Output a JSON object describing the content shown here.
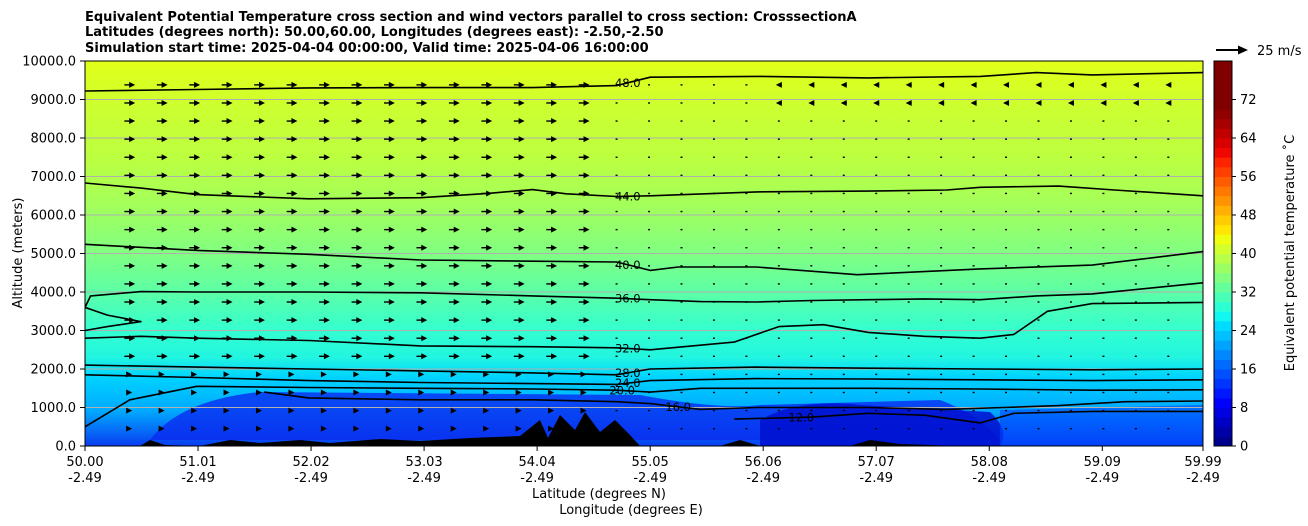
{
  "chart_data": {
    "type": "contour",
    "title_lines": [
      "Equivalent Potential Temperature cross section and wind vectors parallel to cross section: CrosssectionA",
      "Latitudes (degrees north): 50.00,60.00, Longitudes (degrees east): -2.50,-2.50",
      "Simulation start time: 2025-04-04 00:00:00, Valid time: 2025-04-06 16:00:00"
    ],
    "xlabel_lat": "Latitude (degrees N)",
    "xlabel_lon": "Longitude (degrees E)",
    "ylabel": "Altitude (meters)",
    "colorbar_label": "Equivalent potential temperature ˚C",
    "quiver_key_label": "25 m/s",
    "ylim": [
      0,
      10000
    ],
    "xlim": [
      50.0,
      59.99
    ],
    "y_ticks": [
      {
        "value": 0,
        "label": "0.0"
      },
      {
        "value": 1000,
        "label": "1000.0"
      },
      {
        "value": 2000,
        "label": "2000.0"
      },
      {
        "value": 3000,
        "label": "3000.0"
      },
      {
        "value": 4000,
        "label": "4000.0"
      },
      {
        "value": 5000,
        "label": "5000.0"
      },
      {
        "value": 6000,
        "label": "6000.0"
      },
      {
        "value": 7000,
        "label": "7000.0"
      },
      {
        "value": 8000,
        "label": "8000.0"
      },
      {
        "value": 9000,
        "label": "9000.0"
      },
      {
        "value": 10000,
        "label": "10000.0"
      }
    ],
    "x_ticks": [
      {
        "lat": 50.0,
        "lat_label": "50.00",
        "lon_label": "-2.49"
      },
      {
        "lat": 51.01,
        "lat_label": "51.01",
        "lon_label": "-2.49"
      },
      {
        "lat": 52.02,
        "lat_label": "52.02",
        "lon_label": "-2.49"
      },
      {
        "lat": 53.03,
        "lat_label": "53.03",
        "lon_label": "-2.49"
      },
      {
        "lat": 54.04,
        "lat_label": "54.04",
        "lon_label": "-2.49"
      },
      {
        "lat": 55.05,
        "lat_label": "55.05",
        "lon_label": "-2.49"
      },
      {
        "lat": 56.06,
        "lat_label": "56.06",
        "lon_label": "-2.49"
      },
      {
        "lat": 57.07,
        "lat_label": "57.07",
        "lon_label": "-2.49"
      },
      {
        "lat": 58.08,
        "lat_label": "58.08",
        "lon_label": "-2.49"
      },
      {
        "lat": 59.09,
        "lat_label": "59.09",
        "lon_label": "-2.49"
      },
      {
        "lat": 59.99,
        "lat_label": "59.99",
        "lon_label": "-2.49"
      }
    ],
    "colorbar_ticks": [
      0,
      8,
      16,
      24,
      32,
      40,
      48,
      56,
      64,
      72
    ],
    "colorbar_range": [
      0,
      80
    ],
    "colorbar_levels": [
      {
        "value": 0,
        "color": "#00008f"
      },
      {
        "value": 2,
        "color": "#0000a8"
      },
      {
        "value": 4,
        "color": "#0000c4"
      },
      {
        "value": 6,
        "color": "#0000e0"
      },
      {
        "value": 8,
        "color": "#0000ff"
      },
      {
        "value": 10,
        "color": "#0018ff"
      },
      {
        "value": 12,
        "color": "#0034ff"
      },
      {
        "value": 14,
        "color": "#0050ff"
      },
      {
        "value": 16,
        "color": "#006cff"
      },
      {
        "value": 18,
        "color": "#0088ff"
      },
      {
        "value": 20,
        "color": "#00a4ff"
      },
      {
        "value": 22,
        "color": "#00c0ff"
      },
      {
        "value": 24,
        "color": "#00dcff"
      },
      {
        "value": 26,
        "color": "#10f8ef"
      },
      {
        "value": 28,
        "color": "#2cffd3"
      },
      {
        "value": 30,
        "color": "#48ffb7"
      },
      {
        "value": 32,
        "color": "#64ff9b"
      },
      {
        "value": 34,
        "color": "#80ff80"
      },
      {
        "value": 36,
        "color": "#9bff64"
      },
      {
        "value": 38,
        "color": "#b7ff48"
      },
      {
        "value": 40,
        "color": "#d3ff2c"
      },
      {
        "value": 42,
        "color": "#efff10"
      },
      {
        "value": 44,
        "color": "#ffe500"
      },
      {
        "value": 46,
        "color": "#ffcc00"
      },
      {
        "value": 48,
        "color": "#ffb000"
      },
      {
        "value": 50,
        "color": "#ff9400"
      },
      {
        "value": 52,
        "color": "#ff7800"
      },
      {
        "value": 54,
        "color": "#ff5c00"
      },
      {
        "value": 56,
        "color": "#ff4000"
      },
      {
        "value": 58,
        "color": "#ff2400"
      },
      {
        "value": 60,
        "color": "#f00800"
      },
      {
        "value": 62,
        "color": "#d80000"
      },
      {
        "value": 64,
        "color": "#c00000"
      },
      {
        "value": 66,
        "color": "#a80000"
      },
      {
        "value": 68,
        "color": "#900000"
      },
      {
        "value": 70,
        "color": "#800000"
      }
    ],
    "contour_lines": [
      {
        "label": "48.0",
        "value": 48,
        "label_at": 54.85,
        "points": [
          [
            50.0,
            9220
          ],
          [
            51.0,
            9260
          ],
          [
            52.0,
            9300
          ],
          [
            53.0,
            9310
          ],
          [
            54.0,
            9310
          ],
          [
            54.75,
            9360
          ],
          [
            55.05,
            9580
          ],
          [
            56.0,
            9600
          ],
          [
            57.0,
            9560
          ],
          [
            58.0,
            9600
          ],
          [
            58.5,
            9700
          ],
          [
            59.0,
            9640
          ],
          [
            59.99,
            9700
          ]
        ]
      },
      {
        "label": "44.0",
        "value": 44,
        "label_at": 54.85,
        "points": [
          [
            50.0,
            6830
          ],
          [
            50.5,
            6700
          ],
          [
            51.0,
            6530
          ],
          [
            52.0,
            6420
          ],
          [
            53.0,
            6450
          ],
          [
            53.6,
            6560
          ],
          [
            54.0,
            6660
          ],
          [
            54.3,
            6550
          ],
          [
            54.75,
            6480
          ],
          [
            55.05,
            6500
          ],
          [
            56.0,
            6600
          ],
          [
            57.0,
            6620
          ],
          [
            57.7,
            6650
          ],
          [
            58.0,
            6720
          ],
          [
            58.7,
            6750
          ],
          [
            59.2,
            6650
          ],
          [
            59.99,
            6500
          ]
        ]
      },
      {
        "label": "40.0",
        "value": 40,
        "label_at": 54.85,
        "points": [
          [
            50.0,
            5240
          ],
          [
            51.0,
            5080
          ],
          [
            52.0,
            4980
          ],
          [
            53.0,
            4830
          ],
          [
            54.0,
            4800
          ],
          [
            54.75,
            4780
          ],
          [
            55.05,
            4560
          ],
          [
            55.3,
            4650
          ],
          [
            56.0,
            4650
          ],
          [
            56.9,
            4450
          ],
          [
            58.0,
            4600
          ],
          [
            59.0,
            4700
          ],
          [
            59.99,
            5050
          ]
        ]
      },
      {
        "label": "36.0",
        "value": 36,
        "label_at": 54.85,
        "points": [
          [
            50.0,
            3000
          ],
          [
            50.2,
            3100
          ],
          [
            50.5,
            3230
          ],
          [
            50.2,
            3400
          ],
          [
            50.0,
            3600
          ],
          [
            50.05,
            3900
          ],
          [
            50.5,
            4010
          ],
          [
            51.0,
            4000
          ],
          [
            52.0,
            4000
          ],
          [
            53.0,
            3980
          ],
          [
            54.0,
            3900
          ],
          [
            54.75,
            3840
          ],
          [
            55.05,
            3800
          ],
          [
            55.5,
            3750
          ],
          [
            56.0,
            3740
          ],
          [
            56.5,
            3780
          ],
          [
            57.0,
            3800
          ],
          [
            57.5,
            3820
          ],
          [
            58.0,
            3800
          ],
          [
            58.5,
            3900
          ],
          [
            59.0,
            3950
          ],
          [
            59.99,
            4240
          ]
        ]
      },
      {
        "label": "32.0",
        "value": 32,
        "label_at": 54.85,
        "points": [
          [
            50.0,
            2800
          ],
          [
            50.5,
            2850
          ],
          [
            51.0,
            2800
          ],
          [
            52.0,
            2740
          ],
          [
            53.0,
            2600
          ],
          [
            54.0,
            2580
          ],
          [
            54.75,
            2550
          ],
          [
            55.05,
            2500
          ],
          [
            55.8,
            2700
          ],
          [
            56.2,
            3100
          ],
          [
            56.6,
            3150
          ],
          [
            57.0,
            2950
          ],
          [
            57.5,
            2850
          ],
          [
            58.0,
            2800
          ],
          [
            58.3,
            2900
          ],
          [
            58.6,
            3500
          ],
          [
            59.0,
            3700
          ],
          [
            59.99,
            3730
          ]
        ]
      },
      {
        "label": "28.0",
        "value": 28,
        "label_at": 54.85,
        "points": [
          [
            50.0,
            2100
          ],
          [
            51.0,
            2050
          ],
          [
            52.0,
            2000
          ],
          [
            53.0,
            1950
          ],
          [
            54.0,
            1900
          ],
          [
            54.75,
            1850
          ],
          [
            55.05,
            2000
          ],
          [
            56.0,
            2050
          ],
          [
            57.0,
            2020
          ],
          [
            58.0,
            2000
          ],
          [
            59.0,
            1980
          ],
          [
            59.99,
            2000
          ]
        ]
      },
      {
        "label": "24.0",
        "value": 24,
        "label_at": 54.85,
        "points": [
          [
            50.0,
            1850
          ],
          [
            51.0,
            1780
          ],
          [
            52.0,
            1700
          ],
          [
            53.0,
            1650
          ],
          [
            54.0,
            1620
          ],
          [
            54.75,
            1600
          ],
          [
            55.05,
            1700
          ],
          [
            56.0,
            1750
          ],
          [
            57.0,
            1740
          ],
          [
            58.0,
            1720
          ],
          [
            59.0,
            1700
          ],
          [
            59.99,
            1720
          ]
        ]
      },
      {
        "label": "20.0",
        "value": 20,
        "label_at": 54.8,
        "points": [
          [
            50.0,
            500
          ],
          [
            50.4,
            1200
          ],
          [
            51.0,
            1550
          ],
          [
            52.0,
            1520
          ],
          [
            53.0,
            1500
          ],
          [
            54.0,
            1480
          ],
          [
            54.75,
            1450
          ],
          [
            55.05,
            1400
          ],
          [
            55.5,
            1500
          ],
          [
            56.0,
            1500
          ],
          [
            57.0,
            1500
          ],
          [
            58.0,
            1480
          ],
          [
            59.0,
            1450
          ],
          [
            59.99,
            1460
          ]
        ]
      },
      {
        "label": "16.0",
        "value": 16,
        "label_at": 55.3,
        "points": [
          [
            51.6,
            1400
          ],
          [
            52.0,
            1250
          ],
          [
            53.0,
            1200
          ],
          [
            54.0,
            1200
          ],
          [
            54.75,
            1150
          ],
          [
            55.05,
            1100
          ],
          [
            55.5,
            950
          ],
          [
            56.0,
            1000
          ],
          [
            57.0,
            1000
          ],
          [
            57.7,
            950
          ],
          [
            58.2,
            1000
          ],
          [
            58.7,
            1050
          ],
          [
            59.3,
            1150
          ],
          [
            59.99,
            1170
          ]
        ]
      },
      {
        "label": "12.0",
        "value": 12,
        "label_at": 56.4,
        "points": [
          [
            55.8,
            700
          ],
          [
            56.5,
            750
          ],
          [
            57.0,
            850
          ],
          [
            57.5,
            800
          ],
          [
            58.0,
            600
          ],
          [
            58.3,
            850
          ],
          [
            59.0,
            900
          ],
          [
            59.99,
            900
          ]
        ]
      }
    ],
    "wind": {
      "u_max": 25,
      "description": "wind vectors parallel to cross section"
    }
  }
}
